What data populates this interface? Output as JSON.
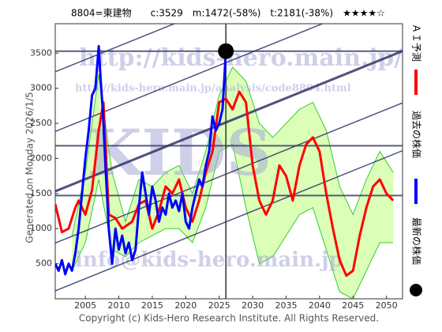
{
  "chart_data": {
    "type": "line",
    "title": "8804=東建物　　c:3529　m:1472(-58%)　t:2181(-38%)　★★★★☆",
    "side_note": "Generated on Monday 2026/1/5.",
    "footer": "Copyright (c) Kids-Hero Research Institute. All Rights Reserved.",
    "watermarks": [
      "http://kids-hero.main.jp/",
      "http://kids-hero.main.jp/analysis/code8804.html",
      "KIDS",
      "info@kids-hero.main.jp"
    ],
    "xlim": [
      2000.5,
      2052.4
    ],
    "ylim": [
      0,
      3920
    ],
    "xticks": [
      2005,
      2010,
      2015,
      2020,
      2025,
      2030,
      2035,
      2040,
      2045,
      2050
    ],
    "yticks": [
      500,
      1000,
      1500,
      2000,
      2500,
      3000,
      3500
    ],
    "grid": false,
    "hlines": [
      3529,
      2181,
      1472
    ],
    "current": {
      "x": 2026,
      "value": 3529,
      "color": "#000000"
    },
    "trend_lines": {
      "x": [
        2000.5,
        2052.4
      ],
      "color": "#333366",
      "lines": [
        [
          3235,
          5233
        ],
        [
          2384,
          4381
        ],
        [
          1532,
          3530
        ],
        [
          795,
          2792
        ],
        [
          114,
          2111
        ]
      ]
    },
    "band": {
      "color": "#33cc33",
      "fill": "#ccff99",
      "x": [
        2003,
        2005,
        2007,
        2009,
        2011,
        2013,
        2015,
        2017,
        2019,
        2021,
        2023,
        2025,
        2027,
        2029,
        2031,
        2033,
        2035,
        2037,
        2039,
        2041,
        2043,
        2045,
        2047,
        2049,
        2051
      ],
      "upper": [
        900,
        1800,
        3200,
        1800,
        1100,
        1700,
        1600,
        1800,
        1900,
        1500,
        2100,
        2900,
        3300,
        3100,
        2500,
        2300,
        2500,
        2700,
        2800,
        2400,
        1600,
        1200,
        1700,
        2100,
        1800
      ],
      "lower": [
        400,
        800,
        1700,
        700,
        600,
        800,
        900,
        1000,
        1000,
        800,
        1300,
        2100,
        2200,
        1300,
        500,
        600,
        900,
        1200,
        1300,
        700,
        100,
        0,
        400,
        800,
        800
      ]
    },
    "series": [
      {
        "name": "ＡＩ予測",
        "color": "#ff0000",
        "x": [
          2000.5,
          2001.5,
          2002.5,
          2003.5,
          2004,
          2005,
          2006,
          2007,
          2007.7,
          2008.5,
          2009.5,
          2010.5,
          2012,
          2013,
          2014,
          2015,
          2016,
          2017,
          2018,
          2019,
          2020,
          2021,
          2022,
          2023,
          2024,
          2025,
          2026,
          2027,
          2028,
          2029,
          2030,
          2031,
          2032,
          2033,
          2034,
          2035,
          2036,
          2037,
          2038,
          2039,
          2040,
          2041,
          2042,
          2043,
          2044,
          2045,
          2046,
          2047,
          2048,
          2049,
          2050,
          2051
        ],
        "values": [
          1350,
          950,
          1000,
          1300,
          1400,
          1200,
          1550,
          2400,
          2800,
          1200,
          1150,
          1000,
          1100,
          1350,
          1400,
          1000,
          1250,
          1600,
          1500,
          1700,
          1300,
          1100,
          1400,
          1800,
          2100,
          2800,
          2850,
          2700,
          2950,
          2800,
          1900,
          1400,
          1200,
          1400,
          1900,
          1750,
          1400,
          1900,
          2200,
          2300,
          2100,
          1500,
          1000,
          550,
          330,
          400,
          900,
          1300,
          1600,
          1700,
          1500,
          1400
        ]
      },
      {
        "name": "過去の株価",
        "color": "#0000ff",
        "x": [
          2000.5,
          2001,
          2001.5,
          2002,
          2002.5,
          2003,
          2003.5,
          2004,
          2004.5,
          2005,
          2005.5,
          2006,
          2006.5,
          2007,
          2007.3,
          2007.6,
          2008,
          2008.5,
          2009,
          2009.5,
          2010,
          2010.5,
          2011,
          2011.5,
          2012,
          2012.5,
          2013,
          2013.5,
          2014,
          2014.5,
          2015,
          2015.5,
          2016,
          2016.5,
          2017,
          2017.5,
          2018,
          2018.5,
          2019,
          2019.5,
          2020,
          2020.5,
          2021,
          2021.5,
          2022,
          2022.5,
          2023,
          2023.5,
          2024,
          2024.5,
          2025,
          2025.5,
          2026
        ],
        "values": [
          500,
          400,
          550,
          350,
          500,
          400,
          650,
          1000,
          1500,
          2000,
          2400,
          2900,
          3000,
          3600,
          3100,
          2700,
          1900,
          1000,
          500,
          1000,
          700,
          900,
          650,
          800,
          550,
          700,
          1300,
          1800,
          1500,
          1200,
          1600,
          1400,
          1100,
          1300,
          1200,
          1500,
          1300,
          1400,
          1250,
          1500,
          1100,
          1000,
          1300,
          1500,
          1700,
          1600,
          1900,
          2100,
          2600,
          2400,
          2500,
          2700,
          3529
        ]
      },
      {
        "name": "最新の株価",
        "color": "#000000",
        "x": [],
        "values": []
      }
    ]
  }
}
